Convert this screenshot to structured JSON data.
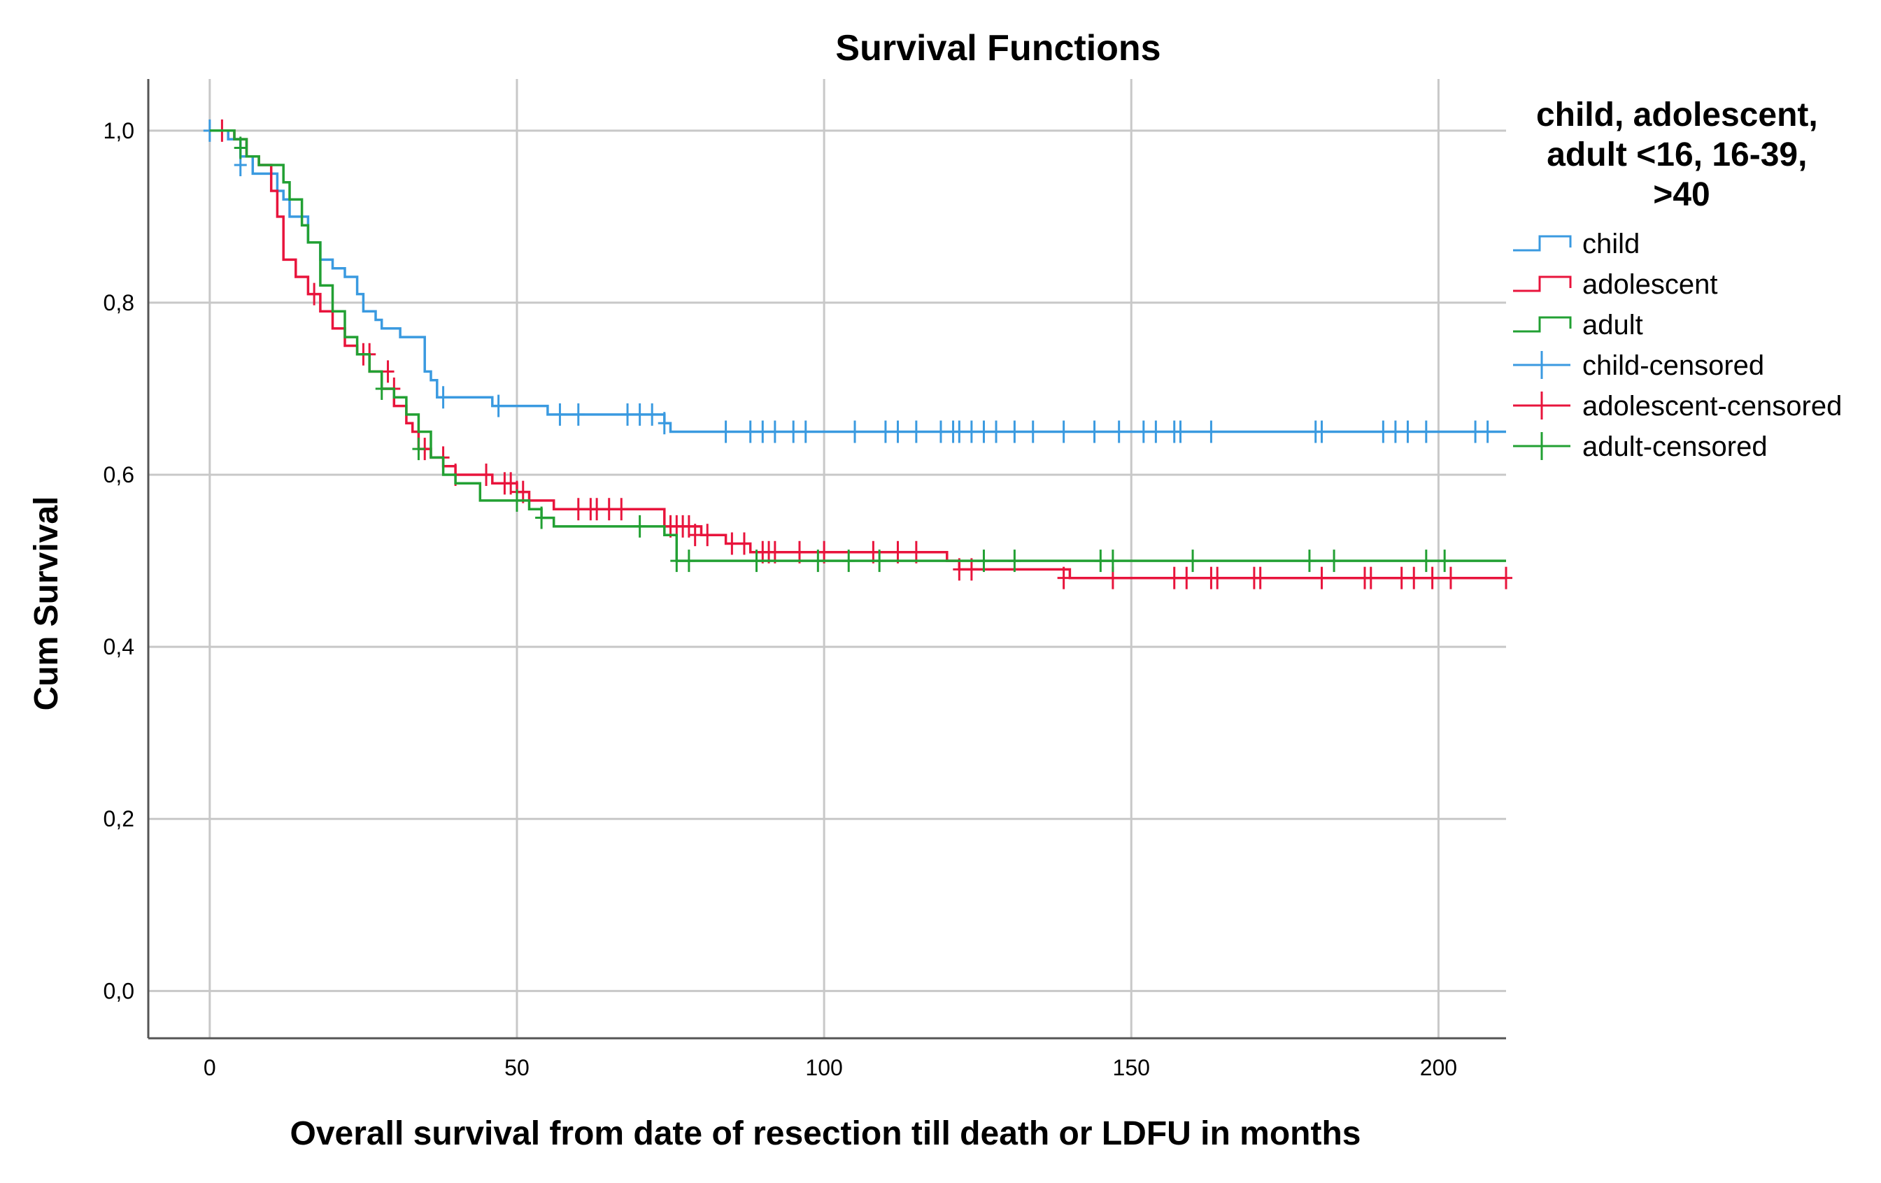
{
  "chart_data": {
    "type": "line",
    "title": "Survival Functions",
    "xlabel": "Overall survival from date of resection till death or LDFU in months",
    "ylabel": "Cum Survival",
    "xlim": [
      -10,
      211
    ],
    "ylim": [
      -0.055,
      1.06
    ],
    "x_ticks": [
      0,
      50,
      100,
      150,
      200
    ],
    "x_tick_labels": [
      "0",
      "50",
      "100",
      "150",
      "200"
    ],
    "y_ticks": [
      0.0,
      0.2,
      0.4,
      0.6,
      0.8,
      1.0
    ],
    "y_tick_labels": [
      "0,0",
      "0,2",
      "0,4",
      "0,6",
      "0,8",
      "1,0"
    ],
    "grid": true,
    "step": true,
    "legend": {
      "title_lines": [
        "child, adolescent,",
        "adult <16, 16-39,",
        ">40"
      ],
      "position": "right",
      "entries": [
        {
          "label": "child",
          "kind": "step",
          "series": 0
        },
        {
          "label": "adolescent",
          "kind": "step",
          "series": 1
        },
        {
          "label": "adult",
          "kind": "step",
          "series": 2
        },
        {
          "label": "child-censored",
          "kind": "censor",
          "series": 0
        },
        {
          "label": "adolescent-censored",
          "kind": "censor",
          "series": 1
        },
        {
          "label": "adult-censored",
          "kind": "censor",
          "series": 2
        }
      ]
    },
    "series": [
      {
        "name": "child",
        "color": "#3a9ae0",
        "x": [
          0,
          3,
          5,
          7,
          9,
          11,
          12,
          13,
          14,
          16,
          18,
          20,
          22,
          24,
          25,
          27,
          28,
          31,
          35,
          36,
          37,
          46,
          55,
          74,
          75,
          211
        ],
        "y": [
          1.0,
          0.99,
          0.97,
          0.95,
          0.95,
          0.93,
          0.92,
          0.9,
          0.9,
          0.87,
          0.85,
          0.84,
          0.83,
          0.81,
          0.79,
          0.78,
          0.77,
          0.76,
          0.72,
          0.71,
          0.69,
          0.68,
          0.67,
          0.66,
          0.65,
          0.65
        ],
        "censored_x": [
          0,
          5,
          38,
          47,
          57,
          60,
          68,
          70,
          72,
          74,
          84,
          88,
          90,
          92,
          95,
          97,
          105,
          110,
          112,
          115,
          119,
          121,
          122,
          124,
          126,
          128,
          131,
          134,
          139,
          144,
          148,
          152,
          154,
          157,
          158,
          163,
          180,
          181,
          191,
          193,
          195,
          198,
          206,
          208
        ],
        "censored_y": [
          1.0,
          0.96,
          0.69,
          0.68,
          0.67,
          0.67,
          0.67,
          0.67,
          0.67,
          0.66,
          0.65,
          0.65,
          0.65,
          0.65,
          0.65,
          0.65,
          0.65,
          0.65,
          0.65,
          0.65,
          0.65,
          0.65,
          0.65,
          0.65,
          0.65,
          0.65,
          0.65,
          0.65,
          0.65,
          0.65,
          0.65,
          0.65,
          0.65,
          0.65,
          0.65,
          0.65,
          0.65,
          0.65,
          0.65,
          0.65,
          0.65,
          0.65,
          0.65,
          0.65
        ]
      },
      {
        "name": "adolescent",
        "color": "#e8143c",
        "x": [
          0,
          2,
          4,
          6,
          8,
          10,
          11,
          12,
          14,
          16,
          18,
          20,
          22,
          24,
          26,
          28,
          30,
          32,
          33,
          34,
          36,
          38,
          40,
          42,
          46,
          50,
          52,
          54,
          56,
          66,
          74,
          80,
          82,
          84,
          86,
          88,
          112,
          120,
          122,
          136,
          140,
          211
        ],
        "y": [
          1.0,
          1.0,
          0.99,
          0.97,
          0.96,
          0.93,
          0.9,
          0.85,
          0.83,
          0.81,
          0.79,
          0.77,
          0.75,
          0.74,
          0.72,
          0.7,
          0.68,
          0.66,
          0.65,
          0.63,
          0.62,
          0.61,
          0.6,
          0.6,
          0.59,
          0.58,
          0.57,
          0.57,
          0.56,
          0.56,
          0.54,
          0.53,
          0.53,
          0.52,
          0.52,
          0.51,
          0.51,
          0.5,
          0.49,
          0.49,
          0.48,
          0.48
        ],
        "censored_x": [
          2,
          17,
          25,
          26,
          29,
          30,
          34,
          35,
          38,
          40,
          45,
          48,
          49,
          50,
          51,
          60,
          62,
          63,
          65,
          67,
          75,
          76,
          77,
          78,
          79,
          81,
          85,
          87,
          90,
          91,
          92,
          96,
          100,
          108,
          112,
          115,
          122,
          124,
          139,
          147,
          157,
          159,
          163,
          164,
          170,
          171,
          181,
          188,
          189,
          194,
          196,
          199,
          202,
          211
        ],
        "censored_y": [
          1.0,
          0.81,
          0.74,
          0.74,
          0.72,
          0.7,
          0.65,
          0.63,
          0.62,
          0.6,
          0.6,
          0.59,
          0.59,
          0.58,
          0.58,
          0.56,
          0.56,
          0.56,
          0.56,
          0.56,
          0.54,
          0.54,
          0.54,
          0.54,
          0.53,
          0.53,
          0.52,
          0.52,
          0.51,
          0.51,
          0.51,
          0.51,
          0.51,
          0.51,
          0.51,
          0.51,
          0.49,
          0.49,
          0.48,
          0.48,
          0.48,
          0.48,
          0.48,
          0.48,
          0.48,
          0.48,
          0.48,
          0.48,
          0.48,
          0.48,
          0.48,
          0.48,
          0.48,
          0.48
        ]
      },
      {
        "name": "adult",
        "color": "#22a033",
        "x": [
          0,
          4,
          6,
          8,
          12,
          13,
          15,
          16,
          18,
          20,
          22,
          24,
          26,
          28,
          30,
          32,
          34,
          36,
          38,
          40,
          44,
          50,
          52,
          54,
          56,
          66,
          74,
          76,
          211
        ],
        "y": [
          1.0,
          0.99,
          0.97,
          0.96,
          0.94,
          0.92,
          0.89,
          0.87,
          0.82,
          0.79,
          0.76,
          0.74,
          0.72,
          0.7,
          0.69,
          0.67,
          0.65,
          0.62,
          0.6,
          0.59,
          0.57,
          0.57,
          0.56,
          0.55,
          0.54,
          0.54,
          0.53,
          0.5,
          0.5
        ],
        "censored_x": [
          5,
          28,
          34,
          50,
          54,
          70,
          76,
          78,
          89,
          99,
          104,
          109,
          126,
          131,
          145,
          147,
          160,
          179,
          183,
          198,
          201
        ],
        "censored_y": [
          0.98,
          0.7,
          0.63,
          0.57,
          0.55,
          0.54,
          0.5,
          0.5,
          0.5,
          0.5,
          0.5,
          0.5,
          0.5,
          0.5,
          0.5,
          0.5,
          0.5,
          0.5,
          0.5,
          0.5,
          0.5
        ]
      }
    ]
  }
}
